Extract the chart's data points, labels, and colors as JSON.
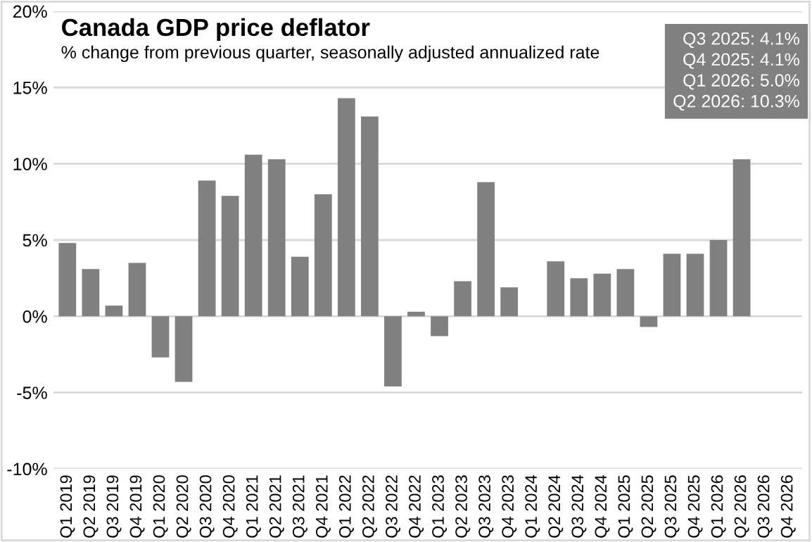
{
  "chart_data": {
    "type": "bar",
    "title": "Canada GDP price deflator",
    "subtitle": "% change from previous quarter, seasonally adjusted annualized rate",
    "categories": [
      "Q1 2019",
      "Q2 2019",
      "Q3 2019",
      "Q4 2019",
      "Q1 2020",
      "Q2 2020",
      "Q3 2020",
      "Q4 2020",
      "Q1 2021",
      "Q2 2021",
      "Q3 2021",
      "Q4 2021",
      "Q1 2022",
      "Q2 2022",
      "Q3 2022",
      "Q4 2022",
      "Q1 2023",
      "Q2 2023",
      "Q3 2023",
      "Q4 2023",
      "Q1 2024",
      "Q2 2024",
      "Q3 2024",
      "Q4 2024",
      "Q1 2025",
      "Q2 2025",
      "Q3 2025",
      "Q4 2025",
      "Q1 2026",
      "Q2 2026",
      "Q3 2026",
      "Q4 2026"
    ],
    "values": [
      4.8,
      3.1,
      0.7,
      3.5,
      -2.7,
      -4.3,
      8.9,
      7.9,
      10.6,
      10.3,
      3.9,
      8.0,
      14.3,
      13.1,
      -4.6,
      0.3,
      -1.3,
      2.3,
      8.8,
      1.9,
      null,
      3.6,
      2.5,
      2.8,
      3.1,
      -0.7,
      4.1,
      4.1,
      5.0,
      10.3,
      null,
      null
    ],
    "color": "#808080",
    "ylim": [
      -10,
      20
    ],
    "yticks": [
      {
        "value": -10,
        "label": "-10%"
      },
      {
        "value": -5,
        "label": "-5%"
      },
      {
        "value": 0,
        "label": "0%"
      },
      {
        "value": 5,
        "label": "5%"
      },
      {
        "value": 10,
        "label": "10%"
      },
      {
        "value": 15,
        "label": "15%"
      },
      {
        "value": 20,
        "label": "20%"
      }
    ],
    "grid": "y",
    "annotations": [
      "Q3 2025: 4.1%\nQ4 2025: 4.1%\nQ1 2026: 5.0%\nQ2 2026: 10.3%"
    ]
  }
}
